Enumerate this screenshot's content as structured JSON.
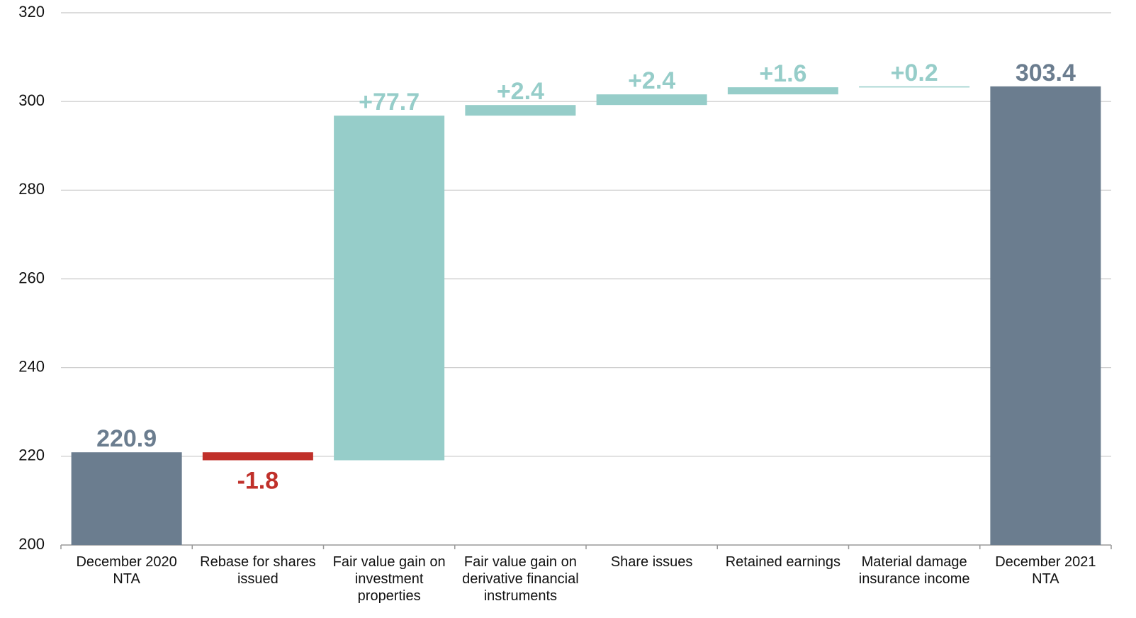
{
  "chart_data": {
    "type": "waterfall",
    "categories": [
      "December 2020 NTA",
      "Rebase for shares issued",
      "Fair value gain on investment properties",
      "Fair value gain on derivative financial instruments",
      "Share issues",
      "Retained earnings",
      "Material damage insurance income",
      "December 2021 NTA"
    ],
    "values": [
      220.9,
      -1.8,
      77.7,
      2.4,
      2.4,
      1.6,
      0.2,
      303.4
    ],
    "value_labels": [
      "220.9",
      "-1.8",
      "+77.7",
      "+2.4",
      "+2.4",
      "+1.6",
      "+0.2",
      "303.4"
    ],
    "measure": [
      "absolute",
      "relative",
      "relative",
      "relative",
      "relative",
      "relative",
      "relative",
      "total"
    ],
    "colors": [
      "#6b7d8f",
      "#c0302a",
      "#96cdc9",
      "#96cdc9",
      "#96cdc9",
      "#96cdc9",
      "#96cdc9",
      "#6b7d8f"
    ],
    "ylim": [
      200,
      320
    ],
    "yticks": [
      200,
      220,
      240,
      260,
      280,
      300,
      320
    ],
    "grid": true
  }
}
